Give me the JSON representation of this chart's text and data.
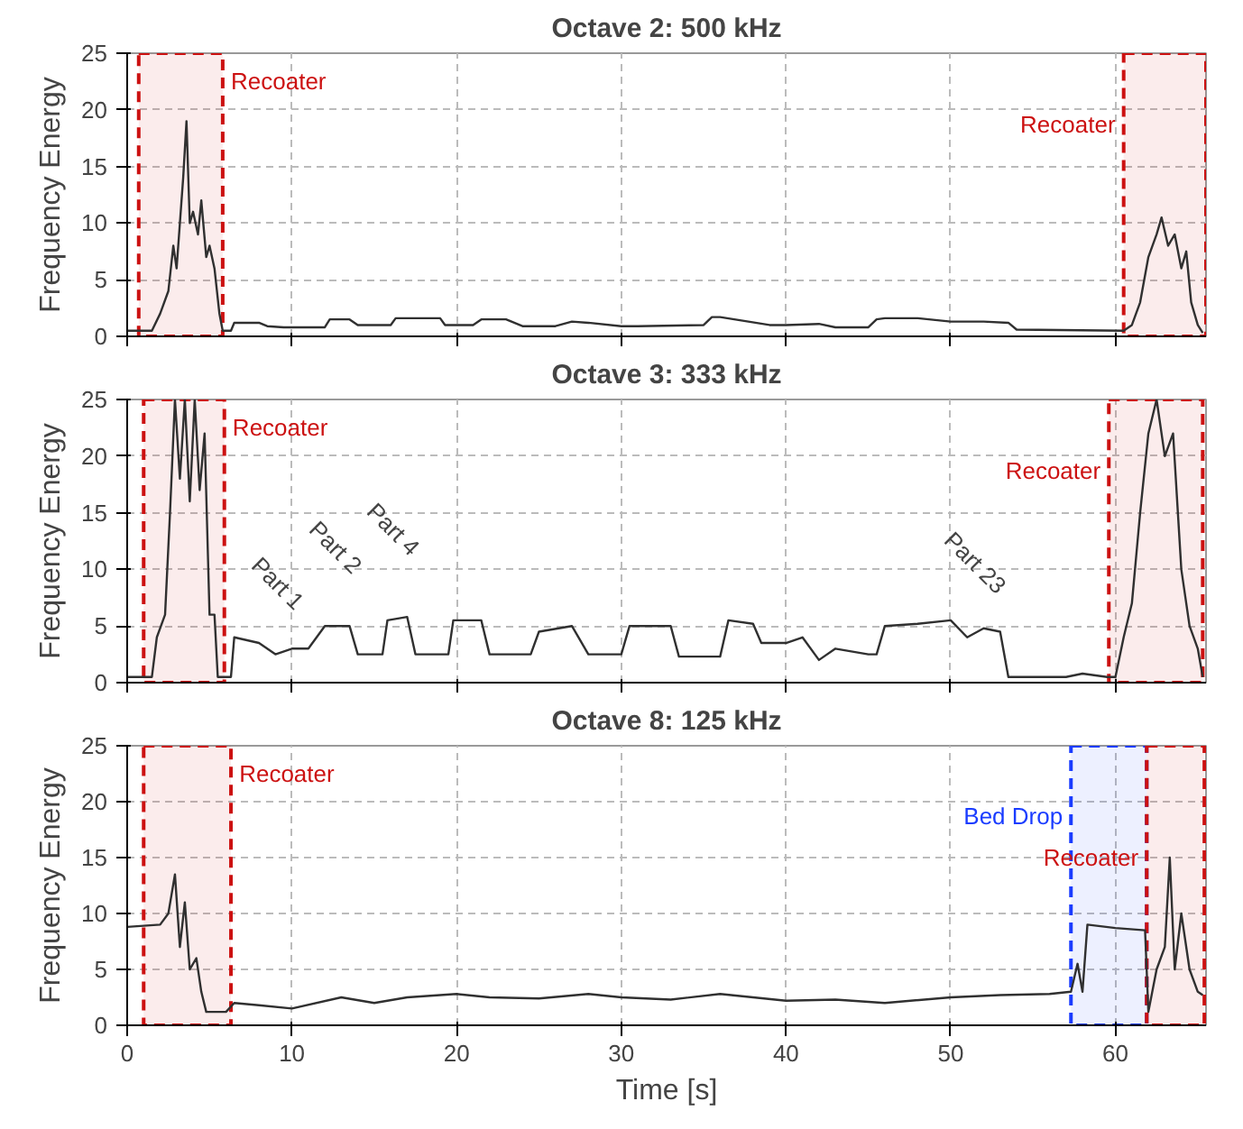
{
  "chart_data": [
    {
      "type": "line",
      "title": "Octave 2: 500 kHz",
      "ylabel": "Frequency Energy",
      "xlim": [
        0,
        65.5
      ],
      "ylim": [
        0,
        25
      ],
      "xticks": [
        0,
        10,
        20,
        30,
        40,
        50,
        60
      ],
      "yticks": [
        0,
        5,
        10,
        15,
        20,
        25
      ],
      "grid": true,
      "tick_labels": "y",
      "series": [
        {
          "color": "#303030",
          "x": [
            0,
            1.5,
            2,
            2.5,
            2.8,
            3,
            3.2,
            3.4,
            3.6,
            3.8,
            4,
            4.3,
            4.5,
            4.8,
            5,
            5.3,
            5.6,
            5.8,
            6.3,
            6.5,
            8,
            8.5,
            9.5,
            12,
            12.3,
            13.5,
            14,
            16,
            16.3,
            19,
            19.3,
            21,
            21.5,
            23,
            24,
            26,
            27,
            28,
            30,
            31,
            35,
            35.5,
            36,
            39,
            40,
            42,
            43,
            45,
            45.5,
            46,
            48,
            50,
            52,
            53.5,
            54,
            60.5,
            61,
            61.5,
            62,
            62.5,
            62.8,
            63.2,
            63.6,
            64,
            64.3,
            64.6,
            65,
            65.3
          ],
          "values": [
            0.5,
            0.5,
            2,
            4,
            8,
            6,
            10,
            14,
            19,
            10,
            11,
            9,
            12,
            7,
            8,
            6,
            2,
            0.5,
            0.5,
            1.2,
            1.2,
            0.9,
            0.8,
            0.8,
            1.5,
            1.5,
            1.0,
            1.0,
            1.6,
            1.6,
            1.0,
            1.0,
            1.5,
            1.5,
            0.9,
            0.9,
            1.3,
            1.2,
            0.9,
            0.9,
            1.0,
            1.7,
            1.7,
            1.0,
            1.0,
            1.1,
            0.8,
            0.8,
            1.5,
            1.6,
            1.6,
            1.3,
            1.3,
            1.2,
            0.6,
            0.5,
            1,
            3,
            7,
            9,
            10.5,
            8,
            9,
            6,
            7.5,
            3,
            1,
            0.3
          ]
        }
      ],
      "bands": [
        {
          "axis": "x",
          "from": 0.7,
          "to": 5.8,
          "label": "Recoater",
          "color": "#cc1111"
        },
        {
          "axis": "x",
          "from": 60.5,
          "to": 65.5,
          "label": "Recoater",
          "color": "#cc1111"
        }
      ]
    },
    {
      "type": "line",
      "title": "Octave 3: 333 kHz",
      "ylabel": "Frequency Energy",
      "xlim": [
        0,
        65.5
      ],
      "ylim": [
        0,
        25
      ],
      "xticks": [
        0,
        10,
        20,
        30,
        40,
        50,
        60
      ],
      "yticks": [
        0,
        5,
        10,
        15,
        20,
        25
      ],
      "grid": true,
      "tick_labels": "y",
      "series": [
        {
          "color": "#303030",
          "x": [
            0,
            1.5,
            1.8,
            2.3,
            2.6,
            2.9,
            3.2,
            3.5,
            3.8,
            4.1,
            4.4,
            4.7,
            5,
            5.3,
            5.5,
            6.3,
            6.5,
            8,
            9,
            10,
            11,
            12,
            13.5,
            14,
            15.5,
            15.8,
            17,
            17.5,
            19.5,
            19.8,
            21.5,
            22,
            24.5,
            25,
            27,
            28,
            30,
            30.5,
            33,
            33.5,
            36,
            36.5,
            38,
            38.5,
            40,
            41,
            42,
            43,
            45,
            45.5,
            46,
            48,
            50,
            51,
            52,
            53,
            53.5,
            57,
            58,
            59.5,
            60,
            60.5,
            61,
            61.5,
            62,
            62.5,
            63,
            63.5,
            64,
            64.5,
            65,
            65.3
          ],
          "values": [
            0.5,
            0.5,
            4,
            6,
            15,
            25,
            18,
            25,
            16,
            25,
            17,
            22,
            6,
            6,
            0.5,
            0.5,
            4,
            3.5,
            2.5,
            3,
            3,
            5,
            5,
            2.5,
            2.5,
            5.5,
            5.8,
            2.5,
            2.5,
            5.5,
            5.5,
            2.5,
            2.5,
            4.5,
            5,
            2.5,
            2.5,
            5,
            5,
            2.3,
            2.3,
            5.5,
            5.2,
            3.5,
            3.5,
            4,
            2,
            3,
            2.5,
            2.5,
            5,
            5.2,
            5.5,
            4,
            4.8,
            4.5,
            0.5,
            0.5,
            0.8,
            0.5,
            0.5,
            4,
            7,
            15,
            22,
            25,
            20,
            22,
            10,
            5,
            3,
            0.5
          ]
        }
      ],
      "annotations": [
        "Part 1",
        "Part 2",
        "Part 4",
        "Part 23"
      ],
      "bands": [
        {
          "axis": "x",
          "from": 1,
          "to": 5.9,
          "label": "Recoater",
          "color": "#cc1111"
        },
        {
          "axis": "x",
          "from": 59.6,
          "to": 65.3,
          "label": "Recoater",
          "color": "#cc1111"
        }
      ]
    },
    {
      "type": "line",
      "title": "Octave 8: 125 kHz",
      "xlabel": "Time [s]",
      "ylabel": "Frequency Energy",
      "xlim": [
        0,
        65.5
      ],
      "ylim": [
        0,
        25
      ],
      "xticks": [
        0,
        10,
        20,
        30,
        40,
        50,
        60
      ],
      "yticks": [
        0,
        5,
        10,
        15,
        20,
        25
      ],
      "grid": true,
      "series": [
        {
          "color": "#303030",
          "x": [
            0,
            2,
            2.5,
            2.9,
            3.2,
            3.5,
            3.8,
            4.2,
            4.5,
            4.8,
            6,
            6.5,
            8,
            10,
            13,
            15,
            17,
            20,
            22,
            25,
            28,
            30,
            33,
            36,
            40,
            43,
            46,
            50,
            53,
            56,
            57.3,
            57.7,
            58,
            58.3,
            60,
            61.8,
            62,
            62.5,
            63,
            63.3,
            63.6,
            64,
            64.5,
            65,
            65.3
          ],
          "values": [
            8.8,
            9,
            10,
            13.5,
            7,
            11,
            5,
            6,
            3,
            1.2,
            1.2,
            2,
            1.8,
            1.5,
            2.5,
            2,
            2.5,
            2.8,
            2.5,
            2.4,
            2.8,
            2.5,
            2.3,
            2.8,
            2.2,
            2.3,
            2,
            2.5,
            2.7,
            2.8,
            3,
            5.5,
            3,
            9,
            8.7,
            8.5,
            1.2,
            5,
            7,
            15,
            5,
            10,
            5,
            3,
            2.7
          ]
        }
      ],
      "bands": [
        {
          "axis": "x",
          "from": 1,
          "to": 6.3,
          "label": "Recoater",
          "color": "#cc1111"
        },
        {
          "axis": "x",
          "from": 57.3,
          "to": 61.9,
          "label": "Bed Drop",
          "color": "#1a3cff"
        },
        {
          "axis": "x",
          "from": 61.9,
          "to": 65.4,
          "label": "Recoater",
          "color": "#cc1111"
        }
      ]
    }
  ]
}
